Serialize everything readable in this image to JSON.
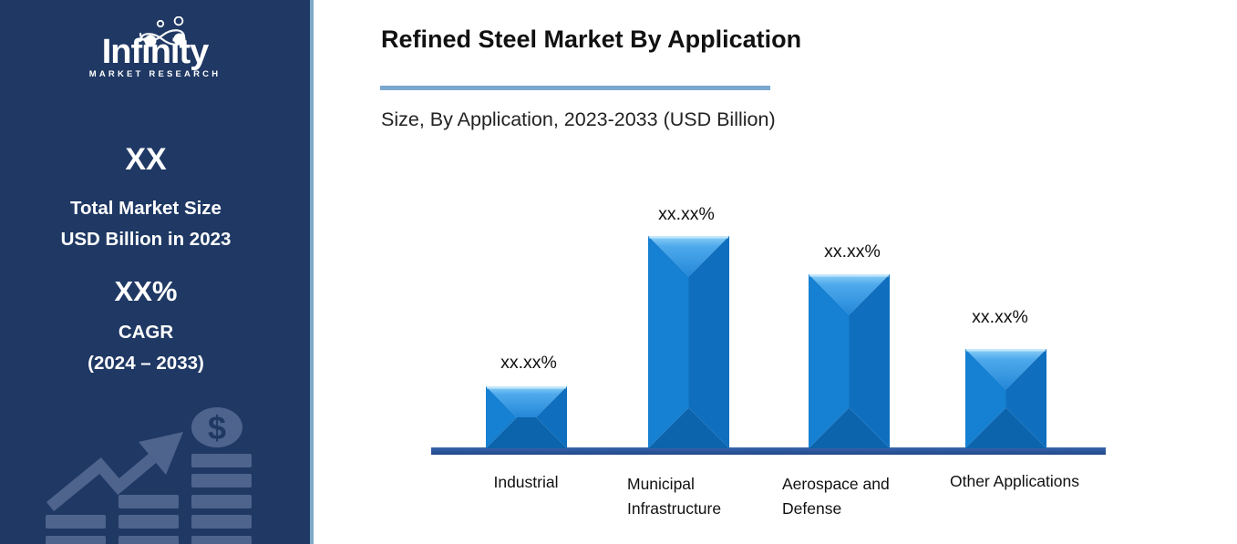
{
  "sidebar": {
    "logo": {
      "name": "Infinity",
      "tagline": "MARKET RESEARCH"
    },
    "market_size": {
      "value": "XX",
      "line1": "Total Market Size",
      "line2": "USD Billion in 2023"
    },
    "cagr": {
      "value": "XX%",
      "label": "CAGR",
      "period": "(2024 – 2033)"
    },
    "decoration": {
      "dollar_sign": "$"
    }
  },
  "header": {
    "title": "Refined Steel Market By Application",
    "subtitle": "Size, By Application, 2023-2033 (USD Billion)"
  },
  "chart_data": {
    "type": "bar",
    "title": "Refined Steel Market By Application",
    "subtitle": "Size, By Application, 2023-2033 (USD Billion)",
    "categories": [
      "Industrial",
      "Municipal\nInfrastructure",
      "Aerospace and\nDefense",
      "Other Applications"
    ],
    "value_labels": [
      "xx.xx%",
      "xx.xx%",
      "xx.xx%",
      "xx.xx%"
    ],
    "values_relative": [
      0.293,
      1.0,
      0.82,
      0.468
    ],
    "ylabel": "",
    "xlabel": "",
    "grid": false,
    "legend": false,
    "bar_color": "#1173C5",
    "axis_color": "#2B5499"
  },
  "colors": {
    "sidebar_bg": "#1F3864",
    "sidebar_edge": "#7FA9C8",
    "title_underline": "#79A7CE",
    "bar_blue": "#1173C5",
    "axis_blue": "#2B5499",
    "decoration_slate": "#4E648D"
  }
}
